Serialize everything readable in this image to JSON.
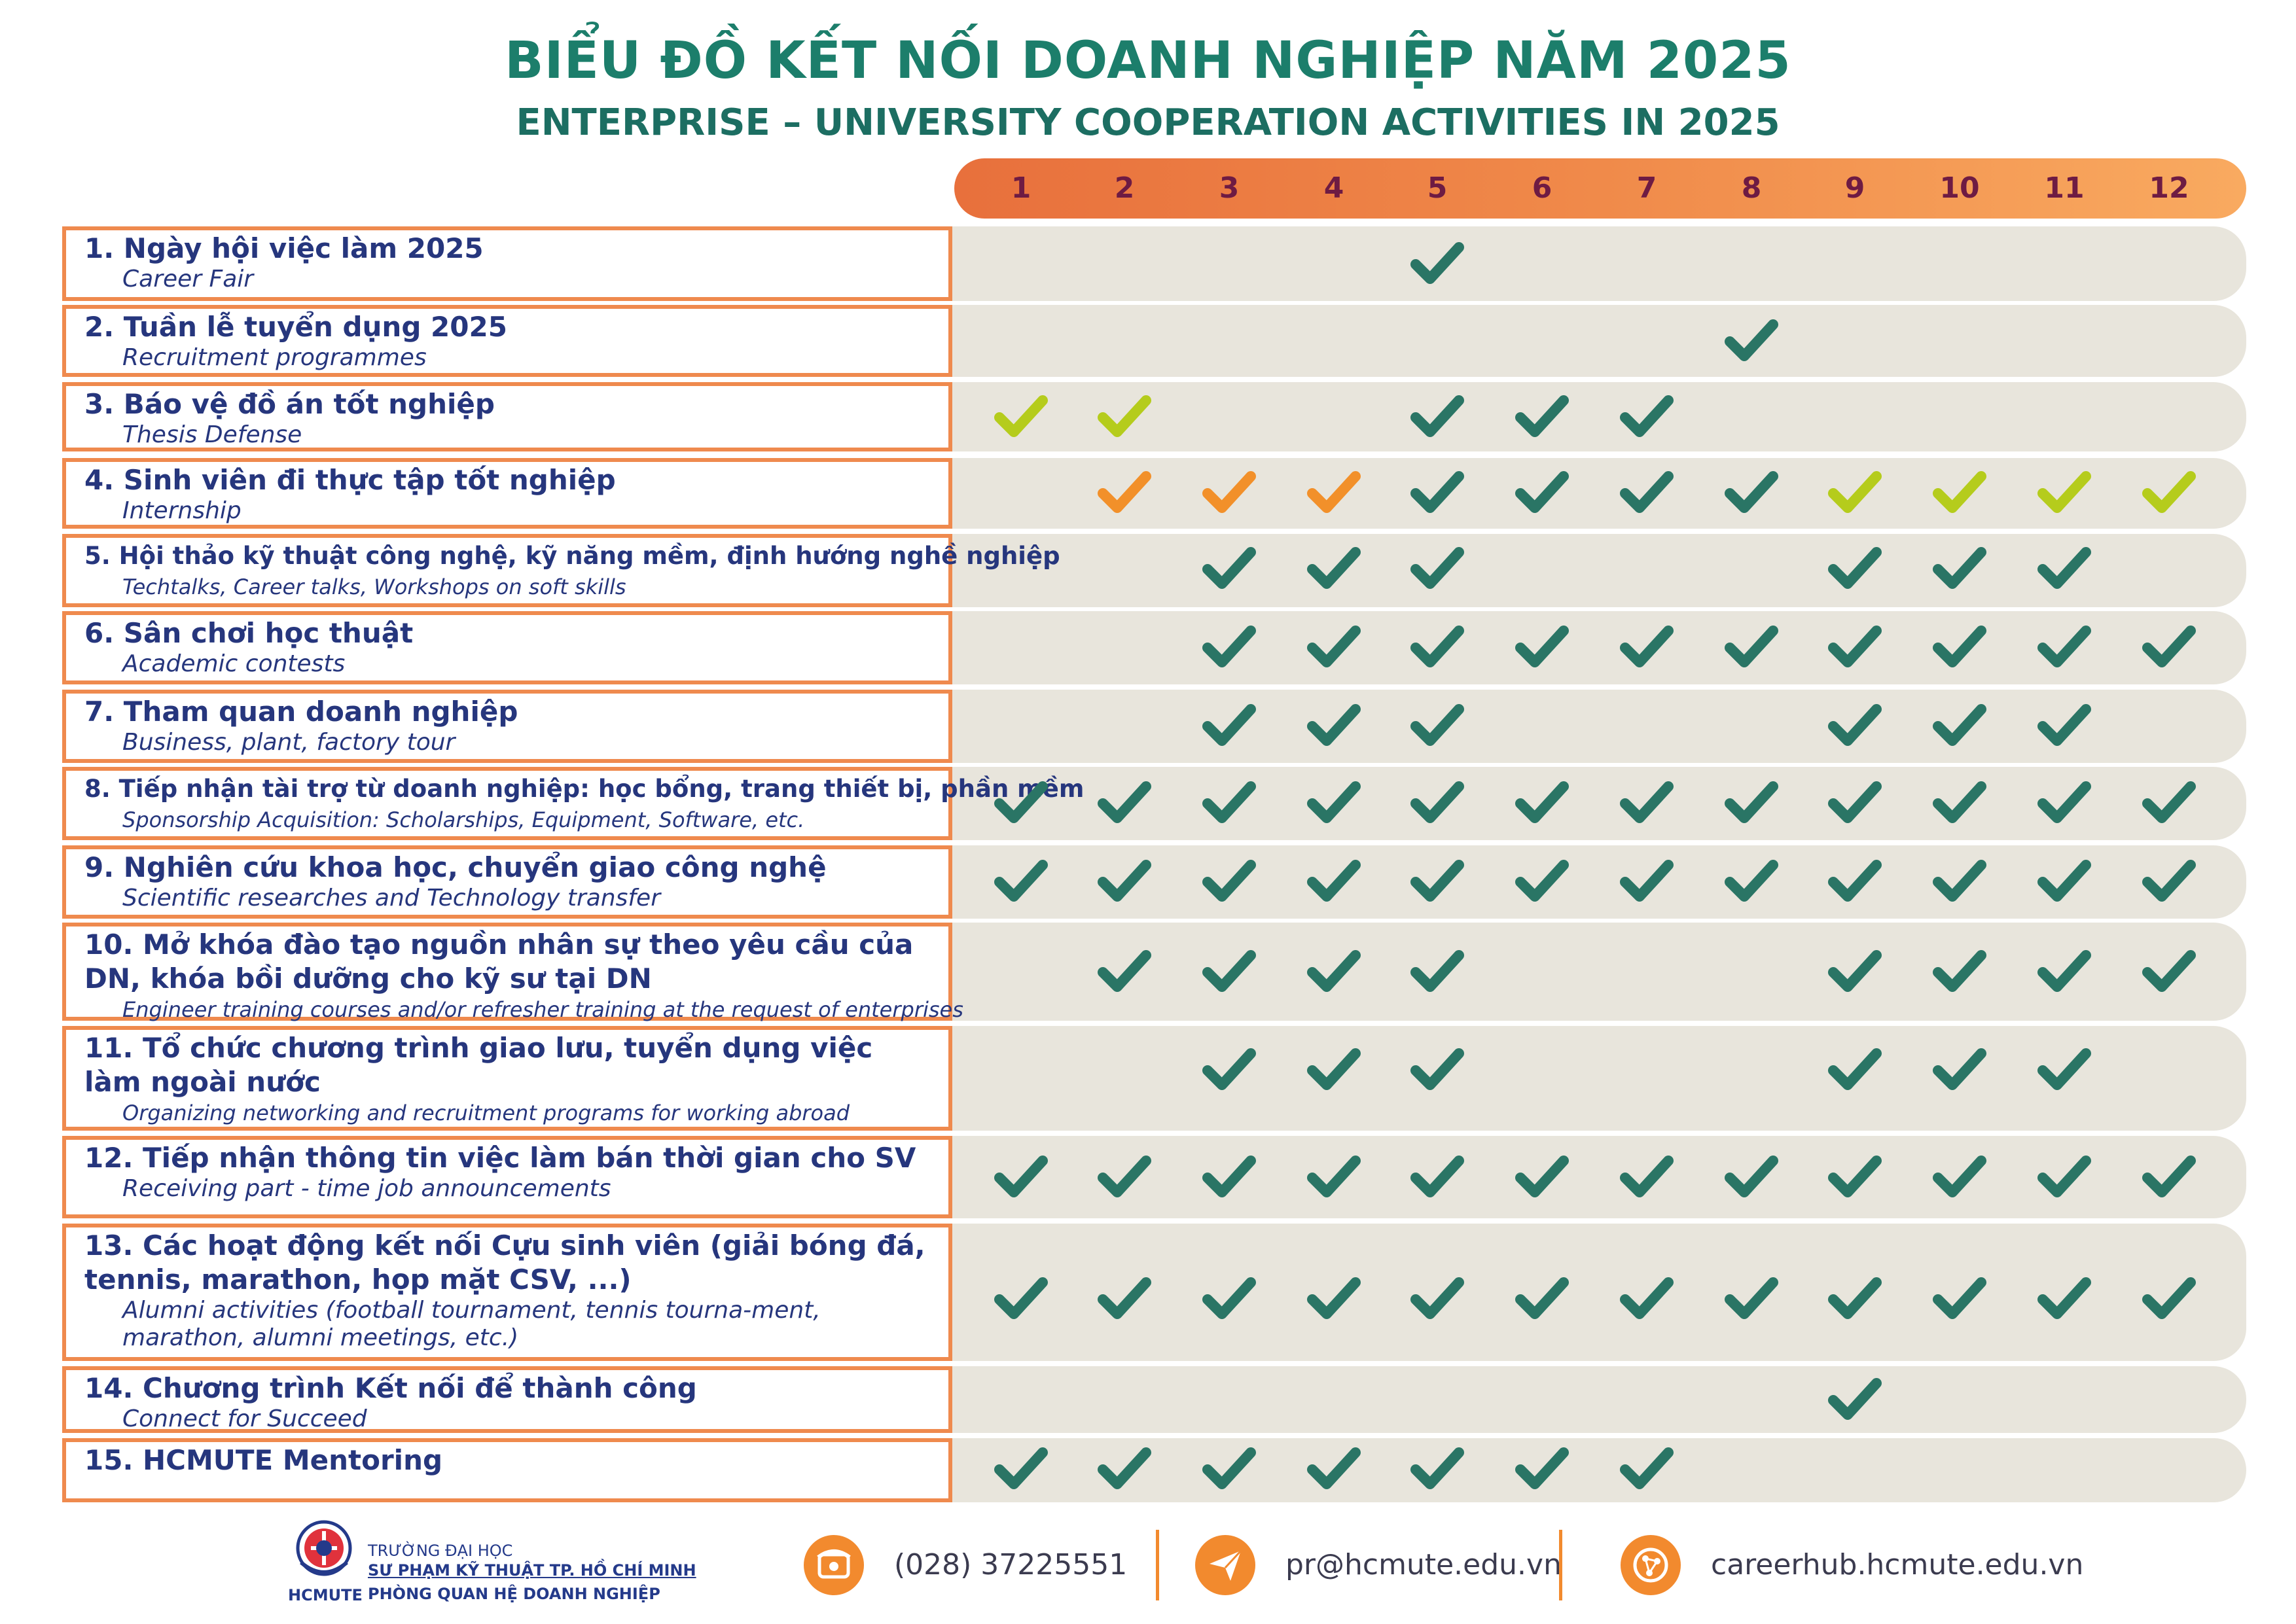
{
  "title": "BIỂU ĐỒ KẾT NỐI DOANH NGHIỆP NĂM 2025",
  "subtitle": "ENTERPRISE – UNIVERSITY COOPERATION ACTIVITIES IN 2025",
  "months": [
    "1",
    "2",
    "3",
    "4",
    "5",
    "6",
    "7",
    "8",
    "9",
    "10",
    "11",
    "12"
  ],
  "colors": {
    "title": "#1c7e6b",
    "check_teal": "#2a7565",
    "check_lime": "#b5cc1c",
    "check_orange": "#f2902a",
    "header_gradient_start": "#e8703c",
    "header_gradient_end": "#f9aa60",
    "row_bg": "#e8e5dc",
    "label_border": "#ef8a4e",
    "label_text": "#26367d"
  },
  "activities": [
    {
      "vn": "1. Ngày hội việc làm 2025",
      "en": "Career Fair",
      "checks": [
        null,
        null,
        null,
        null,
        "teal",
        null,
        null,
        null,
        null,
        null,
        null,
        null
      ]
    },
    {
      "vn": "2. Tuần lễ tuyển dụng 2025",
      "en": "Recruitment programmes",
      "checks": [
        null,
        null,
        null,
        null,
        null,
        null,
        null,
        "teal",
        null,
        null,
        null,
        null
      ]
    },
    {
      "vn": "3. Báo vệ đồ án tốt nghiệp",
      "en": "Thesis Defense",
      "checks": [
        "lime",
        "lime",
        null,
        null,
        "teal",
        "teal",
        "teal",
        null,
        null,
        null,
        null,
        null
      ]
    },
    {
      "vn": "4. Sinh viên đi thực tập tốt nghiệp",
      "en": "Internship",
      "checks": [
        null,
        "orange",
        "orange",
        "orange",
        "teal",
        "teal",
        "teal",
        "teal",
        "lime",
        "lime",
        "lime",
        "lime"
      ]
    },
    {
      "vn": "5. Hội thảo kỹ thuật công nghệ, kỹ năng mềm, định hướng nghề nghiệp",
      "en": "Techtalks, Career talks, Workshops on soft skills",
      "checks": [
        null,
        null,
        "teal",
        "teal",
        "teal",
        null,
        null,
        null,
        "teal",
        "teal",
        "teal",
        null
      ]
    },
    {
      "vn": "6. Sân chơi học thuật",
      "en": "Academic contests",
      "checks": [
        null,
        null,
        "teal",
        "teal",
        "teal",
        "teal",
        "teal",
        "teal",
        "teal",
        "teal",
        "teal",
        "teal"
      ]
    },
    {
      "vn": "7. Tham quan doanh nghiệp",
      "en": "Business, plant, factory tour",
      "checks": [
        null,
        null,
        "teal",
        "teal",
        "teal",
        null,
        null,
        null,
        "teal",
        "teal",
        "teal",
        null
      ]
    },
    {
      "vn": "8. Tiếp nhận tài trợ từ doanh nghiệp: học bổng, trang thiết bị, phần mềm",
      "en": "Sponsorship Acquisition: Scholarships, Equipment, Software, etc.",
      "checks": [
        "teal",
        "teal",
        "teal",
        "teal",
        "teal",
        "teal",
        "teal",
        "teal",
        "teal",
        "teal",
        "teal",
        "teal"
      ]
    },
    {
      "vn": "9. Nghiên cứu khoa học, chuyển giao công nghệ",
      "en": "Scientific researches and Technology transfer",
      "checks": [
        "teal",
        "teal",
        "teal",
        "teal",
        "teal",
        "teal",
        "teal",
        "teal",
        "teal",
        "teal",
        "teal",
        "teal"
      ]
    },
    {
      "vn": "10. Mở khóa đào tạo nguồn nhân sự theo yêu cầu của DN, khóa bồi dưỡng cho kỹ sư tại DN",
      "en": "Engineer training courses and/or refresher training at the request of enterprises",
      "checks": [
        null,
        "teal",
        "teal",
        "teal",
        "teal",
        null,
        null,
        null,
        "teal",
        "teal",
        "teal",
        "teal"
      ]
    },
    {
      "vn": "11. Tổ chức chương trình giao lưu, tuyển dụng việc làm ngoài nước",
      "en": "Organizing networking and recruitment programs for working abroad",
      "checks": [
        null,
        null,
        "teal",
        "teal",
        "teal",
        null,
        null,
        null,
        "teal",
        "teal",
        "teal",
        null
      ]
    },
    {
      "vn": "12. Tiếp nhận thông tin việc làm bán thời gian cho SV",
      "en": "Receiving part - time job announcements",
      "checks": [
        "teal",
        "teal",
        "teal",
        "teal",
        "teal",
        "teal",
        "teal",
        "teal",
        "teal",
        "teal",
        "teal",
        "teal"
      ]
    },
    {
      "vn": "13. Các hoạt động kết nối Cựu sinh viên (giải bóng đá, tennis, marathon, họp mặt CSV, ...)",
      "en": "Alumni activities (football tournament, tennis tourna-ment, marathon, alumni meetings, etc.)",
      "checks": [
        "teal",
        "teal",
        "teal",
        "teal",
        "teal",
        "teal",
        "teal",
        "teal",
        "teal",
        "teal",
        "teal",
        "teal"
      ]
    },
    {
      "vn": "14. Chương trình Kết nối để thành công",
      "en": "Connect for Succeed",
      "checks": [
        null,
        null,
        null,
        null,
        null,
        null,
        null,
        null,
        "teal",
        null,
        null,
        null
      ]
    },
    {
      "vn": "15. HCMUTE Mentoring",
      "en": "",
      "checks": [
        "teal",
        "teal",
        "teal",
        "teal",
        "teal",
        "teal",
        "teal",
        null,
        null,
        null,
        null,
        null
      ]
    }
  ],
  "footer": {
    "school_line1": "TRƯỜNG ĐẠI HỌC",
    "school_line2": "SƯ PHẠM KỸ THUẬT TP. HỒ CHÍ MINH",
    "school_line3": "PHÒNG QUAN HỆ DOANH NGHIỆP",
    "logo_text": "HCMUTE",
    "phone": "(028) 37225551",
    "email": "pr@hcmute.edu.vn",
    "website": "careerhub.hcmute.edu.vn",
    "phone_icon": "phone-icon",
    "email_icon": "send-icon",
    "website_icon": "globe-icon"
  }
}
